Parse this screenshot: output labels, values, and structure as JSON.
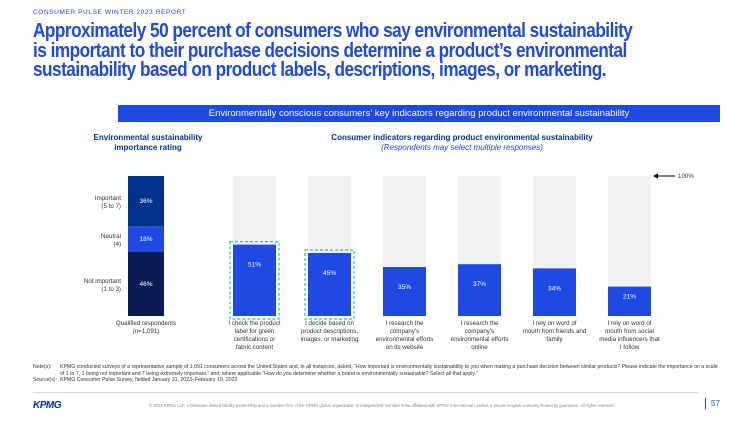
{
  "report_label": "CONSUMER PULSE WINTER 2023 REPORT",
  "headline": "Approximately 50 percent of consumers who say environmental sustainability is important to their purchase decisions determine a product’s environmental sustainability based on product labels, descriptions, images, or marketing.",
  "banner": "Environmentally conscious consumers’ key indicators regarding product environmental sustainability",
  "colors": {
    "brand_blue": "#1e49e2",
    "dark_blue": "#00338d",
    "deep_navy": "#0c1c53",
    "bar_bg": "#f2f2f2",
    "highlight": "#24c6b3"
  },
  "chart_data": [
    {
      "type": "bar",
      "stacked": true,
      "title": "Environmental sustainability importance rating",
      "categories": [
        "Qualified respondents (n=1,091)"
      ],
      "series": [
        {
          "name": "Not important (1 to 3)",
          "values": [
            46
          ],
          "label": "46%",
          "color": "#0c1c53"
        },
        {
          "name": "Neutral (4)",
          "values": [
            18
          ],
          "label": "18%",
          "color": "#1e49e2"
        },
        {
          "name": "Important (5 to 7)",
          "values": [
            36
          ],
          "label": "36%",
          "color": "#00338d"
        }
      ],
      "ylim": [
        0,
        100
      ]
    },
    {
      "type": "bar",
      "title": "Consumer indicators regarding product environmental sustainability",
      "subtitle": "(Respondents may select multiple responses)",
      "reference_label": "100%",
      "categories": [
        "I check the product label for green certifications or fabric content",
        "I decide based on product descriptions, images, or marketing",
        "I research the company’s environmental efforts on its website",
        "I research the company’s environmental efforts online",
        "I rely on word of mouth from friends and family",
        "I rely on word of mouth from social media influencers that I follow"
      ],
      "values": [
        51,
        45,
        35,
        37,
        34,
        21
      ],
      "value_labels": [
        "51%",
        "45%",
        "35%",
        "37%",
        "34%",
        "21%"
      ],
      "highlighted": [
        true,
        true,
        false,
        false,
        false,
        false
      ],
      "ylim": [
        0,
        100
      ]
    }
  ],
  "notes": {
    "notes_label": "Note(s):",
    "notes_text": "KPMG conducted surveys of a representative sample of 1,091 consumers across the United States and, in all instances, asked, “How important is environmentally sustainability to you when making a purchase decision between similar products? Please indicate the importance on a scale of 1 to 7, 1 being not important and 7 being extremely important.” and, where applicable “How do you determine whether a brand is environmentally sustainable? Select all that apply.”",
    "source_label": "Source(s):",
    "source_text": "KPMG Consumer Pulse Survey, fielded January 31, 2023–February 10, 2023"
  },
  "footer": {
    "logo": "KPMG",
    "copyright": "© 2023 KPMG LLP, a Delaware limited liability partnership and a member firm of the KPMG global organization of independent member firms affiliated with KPMG International Limited, a private English company limited by guarantee. All rights reserved.",
    "page": "57"
  }
}
